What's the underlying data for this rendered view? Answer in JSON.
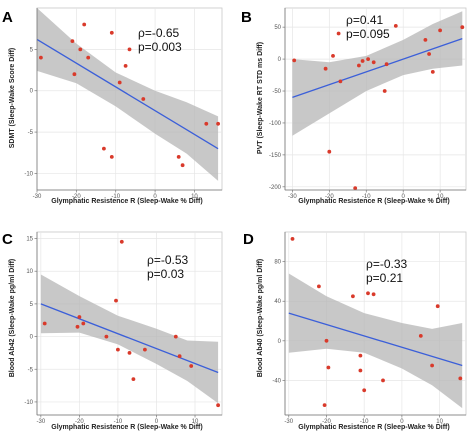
{
  "chart_data": [
    {
      "type": "scatter",
      "panel_label": "A",
      "ylabel": "SDMT (Sleep-Wake Score Diff)",
      "xlabel": "Glymphatic Resistence R (Sleep-Wake % Diff)",
      "xlim": [
        -30,
        17
      ],
      "ylim": [
        -12,
        10
      ],
      "xticks": [
        -30,
        -20,
        -10,
        0,
        10
      ],
      "yticks": [
        -10,
        -5,
        0,
        5
      ],
      "grid": true,
      "annotation": [
        "ρ=-0.65",
        "p=0.003"
      ],
      "points": [
        {
          "x": -29,
          "y": 4
        },
        {
          "x": -21,
          "y": 6
        },
        {
          "x": -20.5,
          "y": 2
        },
        {
          "x": -19,
          "y": 5
        },
        {
          "x": -18,
          "y": 8
        },
        {
          "x": -17,
          "y": 4
        },
        {
          "x": -13,
          "y": -7
        },
        {
          "x": -11,
          "y": 7
        },
        {
          "x": -11,
          "y": -8
        },
        {
          "x": -9,
          "y": 1
        },
        {
          "x": -7.5,
          "y": 3
        },
        {
          "x": -6.5,
          "y": 5
        },
        {
          "x": -3,
          "y": -1
        },
        {
          "x": 6,
          "y": -8
        },
        {
          "x": 7,
          "y": -9
        },
        {
          "x": 13,
          "y": -4
        },
        {
          "x": 16,
          "y": -4
        }
      ],
      "fit_line": {
        "x": [
          -30,
          16
        ],
        "y": [
          6.2,
          -7
        ]
      },
      "ci_band": {
        "x": [
          -30,
          -20,
          -10,
          0,
          8,
          16
        ],
        "lower": [
          2.4,
          0.9,
          -1.9,
          -5.2,
          -7.6,
          -10.9
        ],
        "upper": [
          10,
          5.7,
          2.2,
          0,
          -1.4,
          -3.1
        ]
      }
    },
    {
      "type": "scatter",
      "panel_label": "B",
      "ylabel": "PVT (Sleep-Wake RT STD ms Diff)",
      "xlabel": "Glymphatic Resistence R (Sleep-Wake % Diff)",
      "xlim": [
        -32,
        17
      ],
      "ylim": [
        -205,
        80
      ],
      "xticks": [
        -30,
        -20,
        -10,
        0,
        10
      ],
      "yticks": [
        -200,
        -150,
        -100,
        -50,
        0,
        50
      ],
      "grid": true,
      "annotation": [
        "ρ=0.41",
        "p=0.095"
      ],
      "points": [
        {
          "x": -29.5,
          "y": -2
        },
        {
          "x": -21,
          "y": -15
        },
        {
          "x": -20,
          "y": -145
        },
        {
          "x": -19,
          "y": 5
        },
        {
          "x": -17.5,
          "y": 40
        },
        {
          "x": -17,
          "y": -35
        },
        {
          "x": -13,
          "y": -202
        },
        {
          "x": -12,
          "y": -10
        },
        {
          "x": -11,
          "y": -3
        },
        {
          "x": -9.5,
          "y": 0
        },
        {
          "x": -8,
          "y": -5
        },
        {
          "x": -5,
          "y": -50
        },
        {
          "x": -4.5,
          "y": -8
        },
        {
          "x": -2,
          "y": 52
        },
        {
          "x": 6,
          "y": 30
        },
        {
          "x": 7,
          "y": 8
        },
        {
          "x": 8,
          "y": -20
        },
        {
          "x": 10,
          "y": 45
        },
        {
          "x": 16,
          "y": 50
        }
      ],
      "fit_line": {
        "x": [
          -30,
          16
        ],
        "y": [
          -60,
          32
        ]
      },
      "ci_band": {
        "x": [
          -30,
          -20,
          -10,
          0,
          8,
          16
        ],
        "lower": [
          -120,
          -85,
          -50,
          -25,
          -15,
          -10
        ],
        "upper": [
          0,
          -5,
          5,
          30,
          55,
          75
        ]
      }
    },
    {
      "type": "scatter",
      "panel_label": "C",
      "ylabel": "Blood Ab42 (Sleep-Wake pg/ml Diff)",
      "xlabel": "Glymphatic Resistence R (Sleep-Wake % Diff)",
      "xlim": [
        -31,
        17
      ],
      "ylim": [
        -12,
        16
      ],
      "xticks": [
        -30,
        -20,
        -10,
        0,
        10
      ],
      "yticks": [
        -10,
        -5,
        0,
        5,
        10,
        15
      ],
      "grid": true,
      "annotation": [
        "ρ=-0.53",
        "p=0.03"
      ],
      "points": [
        {
          "x": -29,
          "y": 2
        },
        {
          "x": -20.5,
          "y": 1.5
        },
        {
          "x": -20,
          "y": 3
        },
        {
          "x": -19,
          "y": 2
        },
        {
          "x": -13,
          "y": 0
        },
        {
          "x": -10.5,
          "y": 5.5
        },
        {
          "x": -10,
          "y": -2
        },
        {
          "x": -9,
          "y": 14.5
        },
        {
          "x": -7,
          "y": -2.5
        },
        {
          "x": -6,
          "y": -6.5
        },
        {
          "x": -3,
          "y": -2
        },
        {
          "x": 5,
          "y": 0
        },
        {
          "x": 6,
          "y": -3
        },
        {
          "x": 9,
          "y": -4.5
        },
        {
          "x": 16,
          "y": -10.5
        }
      ],
      "fit_line": {
        "x": [
          -30,
          16
        ],
        "y": [
          5,
          -5.5
        ]
      },
      "ci_band": {
        "x": [
          -30,
          -20,
          -10,
          0,
          8,
          16
        ],
        "lower": [
          0.5,
          0.6,
          -1.2,
          -4.2,
          -6.8,
          -10.2
        ],
        "upper": [
          9.5,
          6.2,
          3.2,
          1.2,
          -0.6,
          -0.8
        ]
      }
    },
    {
      "type": "scatter",
      "panel_label": "D",
      "ylabel": "Blood Ab40 (Sleep-Wake pg/ml Diff)",
      "xlabel": "Glymphatic Resistence R (Sleep-Wake % Diff)",
      "xlim": [
        -31,
        17
      ],
      "ylim": [
        -75,
        110
      ],
      "xticks": [
        -30,
        -20,
        -10,
        0,
        10
      ],
      "yticks": [
        -40,
        0,
        40,
        80
      ],
      "grid": true,
      "annotation": [
        "ρ=-0.33",
        "p=0.21"
      ],
      "points": [
        {
          "x": -29,
          "y": 103
        },
        {
          "x": -22,
          "y": 55
        },
        {
          "x": -20,
          "y": 0
        },
        {
          "x": -19.5,
          "y": -27
        },
        {
          "x": -20.5,
          "y": -65
        },
        {
          "x": -13,
          "y": 45
        },
        {
          "x": -11,
          "y": -15
        },
        {
          "x": -11,
          "y": -30
        },
        {
          "x": -10,
          "y": -50
        },
        {
          "x": -9,
          "y": 48
        },
        {
          "x": -7.5,
          "y": 47
        },
        {
          "x": -5,
          "y": -40
        },
        {
          "x": 5,
          "y": 5
        },
        {
          "x": 8,
          "y": -25
        },
        {
          "x": 9.5,
          "y": 35
        },
        {
          "x": 15.5,
          "y": -38
        }
      ],
      "fit_line": {
        "x": [
          -30,
          16
        ],
        "y": [
          28,
          -25
        ]
      },
      "ci_band": {
        "x": [
          -30,
          -20,
          -10,
          0,
          8,
          16
        ],
        "lower": [
          -12,
          -8,
          -12,
          -28,
          -45,
          -68
        ],
        "upper": [
          68,
          45,
          28,
          18,
          12,
          18
        ]
      }
    }
  ]
}
